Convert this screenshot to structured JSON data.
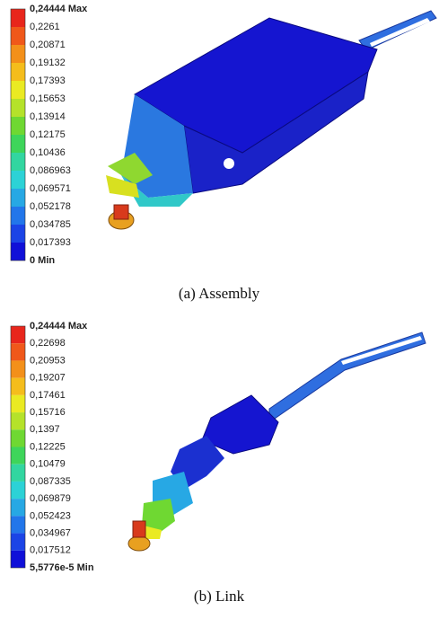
{
  "panels": [
    {
      "legend": [
        "0,24444 Max",
        "0,2261",
        "0,20871",
        "0,19132",
        "0,17393",
        "0,15653",
        "0,13914",
        "0,12175",
        "0,10436",
        "0,086963",
        "0,069571",
        "0,052178",
        "0,034785",
        "0,017393",
        "0 Min"
      ],
      "colors": [
        "#e8261c",
        "#f0581a",
        "#f3901a",
        "#f5bd1c",
        "#eaea22",
        "#b5e22a",
        "#6fd832",
        "#3ed55a",
        "#32d6a0",
        "#2cd2d6",
        "#27a8e4",
        "#2276ea",
        "#1b44e6",
        "#1010d8"
      ],
      "caption": "(a)  Assembly"
    },
    {
      "legend": [
        "0,24444 Max",
        "0,22698",
        "0,20953",
        "0,19207",
        "0,17461",
        "0,15716",
        "0,1397",
        "0,12225",
        "0,10479",
        "0,087335",
        "0,069879",
        "0,052423",
        "0,034967",
        "0,017512",
        "5,5776e-5 Min"
      ],
      "colors": [
        "#e8261c",
        "#f0581a",
        "#f3901a",
        "#f5bd1c",
        "#eaea22",
        "#b5e22a",
        "#6fd832",
        "#3ed55a",
        "#32d6a0",
        "#2cd2d6",
        "#27a8e4",
        "#2276ea",
        "#1b44e6",
        "#1010d8"
      ],
      "caption": "(b)  Link"
    }
  ]
}
